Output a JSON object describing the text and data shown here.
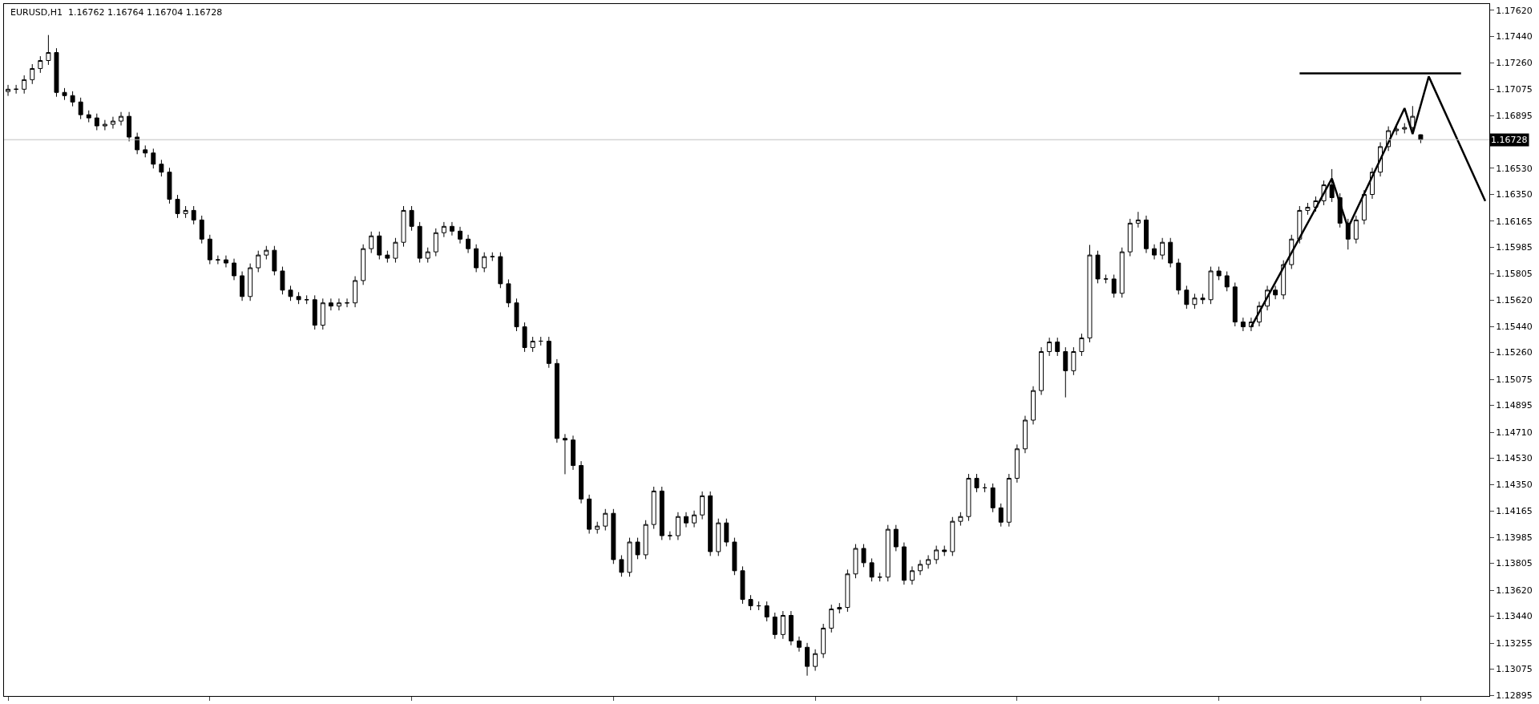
{
  "chart_data": {
    "type": "candlestick",
    "title": "EURUSD,H1  1.16762 1.16764 1.16704 1.16728",
    "categories": [
      null,
      null,
      null,
      null,
      null,
      null,
      null,
      null,
      null,
      null,
      null,
      null,
      null,
      null,
      null,
      null,
      null,
      null,
      null,
      null,
      null,
      null,
      null,
      null,
      null,
      null,
      null,
      null,
      null,
      null,
      null,
      null,
      null,
      null,
      null,
      null,
      null,
      null,
      null,
      null,
      null,
      null,
      null,
      null,
      null,
      null,
      null,
      null,
      null,
      null,
      null,
      null,
      null,
      null,
      null,
      null,
      null,
      null,
      null,
      null,
      null,
      null,
      null,
      null,
      null,
      null,
      null,
      null,
      null,
      null,
      null,
      null,
      null,
      null,
      null,
      null,
      null,
      null,
      null,
      null,
      null,
      null,
      null,
      null,
      null,
      null,
      null,
      null,
      null,
      null,
      null,
      null,
      null,
      null,
      null,
      null,
      null,
      null,
      null,
      null,
      null,
      null,
      null,
      null,
      null,
      null,
      null,
      null,
      null,
      null,
      null,
      null,
      null,
      null,
      null,
      null,
      null,
      null,
      null,
      null,
      null,
      null,
      null,
      null,
      null,
      null,
      null,
      null,
      null,
      null,
      null,
      null,
      null,
      null,
      null,
      null,
      null,
      null,
      null,
      null,
      null,
      null,
      null,
      null,
      null,
      null,
      null,
      null,
      null,
      null,
      null,
      null,
      null,
      null,
      null,
      null,
      null,
      null,
      null,
      null,
      null,
      null,
      null,
      null,
      null,
      null,
      null,
      null,
      null,
      null,
      null,
      null,
      null,
      null,
      null,
      null,
      null,
      null,
      null,
      null,
      null,
      null,
      null,
      null
    ],
    "ohlc": [
      [
        1.1706,
        1.17106,
        1.1703,
        1.17076
      ],
      [
        1.17076,
        1.17106,
        1.17046,
        1.17076
      ],
      [
        1.17076,
        1.17172,
        1.17046,
        1.17142
      ],
      [
        1.17142,
        1.17249,
        1.17112,
        1.17219
      ],
      [
        1.17219,
        1.17304,
        1.17189,
        1.17274
      ],
      [
        1.17274,
        1.1745,
        1.17244,
        1.17329
      ],
      [
        1.17329,
        1.17359,
        1.17024,
        1.17054
      ],
      [
        1.17054,
        1.17084,
        1.17002,
        1.17032
      ],
      [
        1.17032,
        1.17062,
        1.16958,
        1.16988
      ],
      [
        1.16988,
        1.17018,
        1.1687,
        1.169
      ],
      [
        1.169,
        1.1693,
        1.16848,
        1.16878
      ],
      [
        1.16878,
        1.16908,
        1.16793,
        1.16823
      ],
      [
        1.16823,
        1.16864,
        1.16793,
        1.16834
      ],
      [
        1.16834,
        1.16886,
        1.16804,
        1.16856
      ],
      [
        1.16856,
        1.16919,
        1.16826,
        1.16889
      ],
      [
        1.16889,
        1.16919,
        1.16716,
        1.16746
      ],
      [
        1.16746,
        1.16776,
        1.16628,
        1.16658
      ],
      [
        1.16658,
        1.16688,
        1.16606,
        1.16636
      ],
      [
        1.16636,
        1.16666,
        1.16529,
        1.16559
      ],
      [
        1.16559,
        1.16589,
        1.16474,
        1.16504
      ],
      [
        1.16504,
        1.16534,
        1.16287,
        1.16317
      ],
      [
        1.16317,
        1.16347,
        1.16188,
        1.16218
      ],
      [
        1.16218,
        1.1627,
        1.16188,
        1.1624
      ],
      [
        1.1624,
        1.1627,
        1.16144,
        1.16174
      ],
      [
        1.16174,
        1.16204,
        1.16012,
        1.16042
      ],
      [
        1.16042,
        1.16072,
        1.15869,
        1.15899
      ],
      [
        1.15899,
        1.15929,
        1.15869,
        1.15899
      ],
      [
        1.15899,
        1.15929,
        1.15847,
        1.15877
      ],
      [
        1.15877,
        1.15907,
        1.15759,
        1.15789
      ],
      [
        1.15789,
        1.15819,
        1.15616,
        1.15646
      ],
      [
        1.15646,
        1.15874,
        1.15616,
        1.15844
      ],
      [
        1.15844,
        1.15962,
        1.15814,
        1.15932
      ],
      [
        1.15932,
        1.15995,
        1.15902,
        1.15965
      ],
      [
        1.15965,
        1.15995,
        1.15792,
        1.15822
      ],
      [
        1.15822,
        1.15852,
        1.1566,
        1.1569
      ],
      [
        1.1569,
        1.1572,
        1.15616,
        1.15646
      ],
      [
        1.15646,
        1.15676,
        1.15594,
        1.15624
      ],
      [
        1.15624,
        1.15654,
        1.15594,
        1.15624
      ],
      [
        1.15624,
        1.15654,
        1.15418,
        1.15448
      ],
      [
        1.15448,
        1.15632,
        1.15418,
        1.15602
      ],
      [
        1.15602,
        1.15632,
        1.1555,
        1.1558
      ],
      [
        1.1558,
        1.15632,
        1.1555,
        1.15602
      ],
      [
        1.15602,
        1.15632,
        1.15572,
        1.15602
      ],
      [
        1.15602,
        1.15786,
        1.15572,
        1.15756
      ],
      [
        1.15756,
        1.16006,
        1.15726,
        1.15976
      ],
      [
        1.15976,
        1.16094,
        1.15946,
        1.16064
      ],
      [
        1.16064,
        1.16094,
        1.15902,
        1.15932
      ],
      [
        1.15932,
        1.15962,
        1.1588,
        1.1591
      ],
      [
        1.1591,
        1.1605,
        1.1588,
        1.1602
      ],
      [
        1.1602,
        1.1627,
        1.1599,
        1.1624
      ],
      [
        1.1624,
        1.1627,
        1.161,
        1.1613
      ],
      [
        1.1613,
        1.1616,
        1.1588,
        1.1591
      ],
      [
        1.1591,
        1.15984,
        1.1588,
        1.15954
      ],
      [
        1.15954,
        1.16116,
        1.15924,
        1.16086
      ],
      [
        1.16086,
        1.1616,
        1.16056,
        1.1613
      ],
      [
        1.1613,
        1.1616,
        1.16067,
        1.16097
      ],
      [
        1.16097,
        1.16127,
        1.16012,
        1.16042
      ],
      [
        1.16042,
        1.16072,
        1.15946,
        1.15976
      ],
      [
        1.15976,
        1.16006,
        1.15814,
        1.15844
      ],
      [
        1.15844,
        1.15951,
        1.15814,
        1.15921
      ],
      [
        1.15921,
        1.15951,
        1.15891,
        1.15921
      ],
      [
        1.15921,
        1.15951,
        1.15704,
        1.15734
      ],
      [
        1.15734,
        1.15764,
        1.15572,
        1.15602
      ],
      [
        1.15602,
        1.15632,
        1.15407,
        1.15437
      ],
      [
        1.15437,
        1.15467,
        1.15264,
        1.15294
      ],
      [
        1.15294,
        1.15368,
        1.15264,
        1.15338
      ],
      [
        1.15338,
        1.15368,
        1.15308,
        1.15338
      ],
      [
        1.15338,
        1.15368,
        1.15154,
        1.15184
      ],
      [
        1.15184,
        1.15214,
        1.14637,
        1.14667
      ],
      [
        1.14667,
        1.14697,
        1.1442,
        1.14656
      ],
      [
        1.14656,
        1.14686,
        1.1445,
        1.1448
      ],
      [
        1.1448,
        1.1451,
        1.14219,
        1.14249
      ],
      [
        1.14249,
        1.14279,
        1.1401,
        1.1404
      ],
      [
        1.1404,
        1.14092,
        1.1401,
        1.14062
      ],
      [
        1.14062,
        1.1418,
        1.14032,
        1.1415
      ],
      [
        1.1415,
        1.1418,
        1.13801,
        1.13831
      ],
      [
        1.13831,
        1.13861,
        1.13713,
        1.13743
      ],
      [
        1.13743,
        1.13982,
        1.13713,
        1.13952
      ],
      [
        1.13952,
        1.13982,
        1.13834,
        1.13864
      ],
      [
        1.13864,
        1.14103,
        1.13834,
        1.14073
      ],
      [
        1.14073,
        1.14334,
        1.14043,
        1.14304
      ],
      [
        1.14304,
        1.14334,
        1.13966,
        1.13996
      ],
      [
        1.13996,
        1.14026,
        1.13966,
        1.13996
      ],
      [
        1.13996,
        1.14158,
        1.13966,
        1.14128
      ],
      [
        1.14128,
        1.14158,
        1.14054,
        1.14084
      ],
      [
        1.14084,
        1.14169,
        1.14054,
        1.14139
      ],
      [
        1.14139,
        1.14301,
        1.14109,
        1.14271
      ],
      [
        1.14271,
        1.14301,
        1.13856,
        1.13886
      ],
      [
        1.13886,
        1.14114,
        1.13856,
        1.14084
      ],
      [
        1.14084,
        1.14114,
        1.13922,
        1.13952
      ],
      [
        1.13952,
        1.13982,
        1.13724,
        1.13754
      ],
      [
        1.13754,
        1.13784,
        1.13526,
        1.13556
      ],
      [
        1.13556,
        1.13586,
        1.13482,
        1.13512
      ],
      [
        1.13512,
        1.13542,
        1.13482,
        1.13512
      ],
      [
        1.13512,
        1.13542,
        1.13405,
        1.13435
      ],
      [
        1.13435,
        1.13465,
        1.13284,
        1.13314
      ],
      [
        1.13314,
        1.13476,
        1.13284,
        1.13446
      ],
      [
        1.13446,
        1.13476,
        1.1324,
        1.1327
      ],
      [
        1.1327,
        1.133,
        1.13196,
        1.13226
      ],
      [
        1.13226,
        1.13256,
        1.1303,
        1.13094
      ],
      [
        1.13094,
        1.13212,
        1.13064,
        1.13182
      ],
      [
        1.13182,
        1.13388,
        1.13152,
        1.13358
      ],
      [
        1.13358,
        1.1352,
        1.13328,
        1.1349
      ],
      [
        1.1349,
        1.13531,
        1.1346,
        1.13501
      ],
      [
        1.13501,
        1.13762,
        1.13471,
        1.13732
      ],
      [
        1.13732,
        1.13938,
        1.13702,
        1.13908
      ],
      [
        1.13908,
        1.13938,
        1.13779,
        1.13809
      ],
      [
        1.13809,
        1.13839,
        1.1368,
        1.1371
      ],
      [
        1.1371,
        1.1374,
        1.1368,
        1.1371
      ],
      [
        1.1371,
        1.1407,
        1.1368,
        1.1404
      ],
      [
        1.1404,
        1.1407,
        1.13889,
        1.13919
      ],
      [
        1.13919,
        1.13949,
        1.13658,
        1.13688
      ],
      [
        1.13688,
        1.13784,
        1.13658,
        1.13754
      ],
      [
        1.13754,
        1.13828,
        1.13724,
        1.13798
      ],
      [
        1.13798,
        1.13861,
        1.13768,
        1.13831
      ],
      [
        1.13831,
        1.13927,
        1.13801,
        1.13897
      ],
      [
        1.13897,
        1.13927,
        1.13856,
        1.13886
      ],
      [
        1.13886,
        1.14125,
        1.13856,
        1.14095
      ],
      [
        1.14095,
        1.14158,
        1.14065,
        1.14128
      ],
      [
        1.14128,
        1.14422,
        1.14098,
        1.14392
      ],
      [
        1.14392,
        1.14422,
        1.14296,
        1.14326
      ],
      [
        1.14326,
        1.14356,
        1.14296,
        1.14326
      ],
      [
        1.14326,
        1.14356,
        1.14158,
        1.14188
      ],
      [
        1.14188,
        1.14218,
        1.14059,
        1.14089
      ],
      [
        1.14089,
        1.14422,
        1.14059,
        1.14392
      ],
      [
        1.14392,
        1.14625,
        1.14362,
        1.14595
      ],
      [
        1.14595,
        1.14823,
        1.14565,
        1.14793
      ],
      [
        1.14793,
        1.15027,
        1.14763,
        1.14997
      ],
      [
        1.14997,
        1.15296,
        1.14967,
        1.15266
      ],
      [
        1.15266,
        1.15362,
        1.15236,
        1.15332
      ],
      [
        1.15332,
        1.15362,
        1.15236,
        1.15266
      ],
      [
        1.15266,
        1.15296,
        1.1495,
        1.15134
      ],
      [
        1.15134,
        1.15296,
        1.15104,
        1.15266
      ],
      [
        1.15266,
        1.1539,
        1.15236,
        1.1536
      ],
      [
        1.1536,
        1.16002,
        1.1533,
        1.15932
      ],
      [
        1.15932,
        1.15962,
        1.15737,
        1.15767
      ],
      [
        1.15767,
        1.15797,
        1.15737,
        1.15767
      ],
      [
        1.15767,
        1.15797,
        1.15638,
        1.15668
      ],
      [
        1.15668,
        1.15984,
        1.15638,
        1.15954
      ],
      [
        1.15954,
        1.16182,
        1.15924,
        1.16152
      ],
      [
        1.16152,
        1.1623,
        1.16122,
        1.16174
      ],
      [
        1.16174,
        1.16204,
        1.15946,
        1.15976
      ],
      [
        1.15976,
        1.16006,
        1.15902,
        1.15932
      ],
      [
        1.15932,
        1.1605,
        1.15902,
        1.1602
      ],
      [
        1.1602,
        1.1605,
        1.15847,
        1.15877
      ],
      [
        1.15877,
        1.15907,
        1.1566,
        1.1569
      ],
      [
        1.1569,
        1.1572,
        1.15561,
        1.15591
      ],
      [
        1.15591,
        1.15665,
        1.15561,
        1.15635
      ],
      [
        1.15635,
        1.15665,
        1.15594,
        1.15624
      ],
      [
        1.15624,
        1.15852,
        1.15594,
        1.15822
      ],
      [
        1.15822,
        1.15852,
        1.15759,
        1.15789
      ],
      [
        1.15789,
        1.15819,
        1.15682,
        1.15712
      ],
      [
        1.15712,
        1.15742,
        1.1544,
        1.1547
      ],
      [
        1.1547,
        1.155,
        1.15407,
        1.15437
      ],
      [
        1.15437,
        1.155,
        1.15407,
        1.1547
      ],
      [
        1.1547,
        1.1561,
        1.1544,
        1.1558
      ],
      [
        1.1558,
        1.1572,
        1.1555,
        1.1569
      ],
      [
        1.1569,
        1.1572,
        1.15627,
        1.15657
      ],
      [
        1.15657,
        1.15896,
        1.15627,
        1.15866
      ],
      [
        1.15866,
        1.16072,
        1.15836,
        1.16042
      ],
      [
        1.16042,
        1.1627,
        1.16012,
        1.1624
      ],
      [
        1.1624,
        1.16292,
        1.1621,
        1.16262
      ],
      [
        1.16262,
        1.16336,
        1.16232,
        1.16306
      ],
      [
        1.16306,
        1.16446,
        1.16276,
        1.16416
      ],
      [
        1.16416,
        1.16525,
        1.16298,
        1.16328
      ],
      [
        1.16328,
        1.16358,
        1.16122,
        1.16152
      ],
      [
        1.16152,
        1.16182,
        1.1597,
        1.16042
      ],
      [
        1.16042,
        1.16204,
        1.16012,
        1.16174
      ],
      [
        1.16174,
        1.1638,
        1.16144,
        1.1635
      ],
      [
        1.1635,
        1.16534,
        1.1632,
        1.16504
      ],
      [
        1.16504,
        1.1671,
        1.16474,
        1.1668
      ],
      [
        1.1668,
        1.1682,
        1.1665,
        1.1679
      ],
      [
        1.1679,
        1.16831,
        1.1676,
        1.16801
      ],
      [
        1.16801,
        1.16842,
        1.16771,
        1.16812
      ],
      [
        1.16812,
        1.1696,
        1.16782,
        1.16889
      ],
      [
        1.16762,
        1.16764,
        1.16704,
        1.16728
      ],
      null,
      null,
      null,
      null,
      null,
      null,
      null,
      null
    ],
    "series": [
      {
        "type": "line",
        "color": "#000000",
        "values": [
          null,
          null,
          null,
          null,
          null,
          null,
          null,
          null,
          null,
          null,
          null,
          null,
          null,
          null,
          null,
          null,
          null,
          null,
          null,
          null,
          null,
          null,
          null,
          null,
          null,
          null,
          null,
          null,
          null,
          null,
          null,
          null,
          null,
          null,
          null,
          null,
          null,
          null,
          null,
          null,
          null,
          null,
          null,
          null,
          null,
          null,
          null,
          null,
          null,
          null,
          null,
          null,
          null,
          null,
          null,
          null,
          null,
          null,
          null,
          null,
          null,
          null,
          null,
          null,
          null,
          null,
          null,
          null,
          null,
          null,
          null,
          null,
          null,
          null,
          null,
          null,
          null,
          null,
          null,
          null,
          null,
          null,
          null,
          null,
          null,
          null,
          null,
          null,
          null,
          null,
          null,
          null,
          null,
          null,
          null,
          null,
          null,
          null,
          null,
          null,
          null,
          null,
          null,
          null,
          null,
          null,
          null,
          null,
          null,
          null,
          null,
          null,
          null,
          null,
          null,
          null,
          null,
          null,
          null,
          null,
          null,
          null,
          null,
          null,
          null,
          null,
          null,
          null,
          null,
          null,
          null,
          null,
          null,
          null,
          null,
          null,
          null,
          null,
          null,
          null,
          null,
          null,
          null,
          null,
          null,
          null,
          null,
          null,
          null,
          null,
          null,
          null,
          null,
          null,
          1.15437,
          null,
          null,
          null,
          null,
          null,
          null,
          null,
          null,
          null,
          1.1646,
          null,
          1.1612,
          null,
          null,
          null,
          null,
          null,
          null,
          1.16945,
          1.16767,
          null,
          1.17164,
          null,
          null,
          null,
          null,
          null,
          null,
          1.16305
        ]
      },
      {
        "type": "line",
        "color": "#000000",
        "values": [
          null,
          null,
          null,
          null,
          null,
          null,
          null,
          null,
          null,
          null,
          null,
          null,
          null,
          null,
          null,
          null,
          null,
          null,
          null,
          null,
          null,
          null,
          null,
          null,
          null,
          null,
          null,
          null,
          null,
          null,
          null,
          null,
          null,
          null,
          null,
          null,
          null,
          null,
          null,
          null,
          null,
          null,
          null,
          null,
          null,
          null,
          null,
          null,
          null,
          null,
          null,
          null,
          null,
          null,
          null,
          null,
          null,
          null,
          null,
          null,
          null,
          null,
          null,
          null,
          null,
          null,
          null,
          null,
          null,
          null,
          null,
          null,
          null,
          null,
          null,
          null,
          null,
          null,
          null,
          null,
          null,
          null,
          null,
          null,
          null,
          null,
          null,
          null,
          null,
          null,
          null,
          null,
          null,
          null,
          null,
          null,
          null,
          null,
          null,
          null,
          null,
          null,
          null,
          null,
          null,
          null,
          null,
          null,
          null,
          null,
          null,
          null,
          null,
          null,
          null,
          null,
          null,
          null,
          null,
          null,
          null,
          null,
          null,
          null,
          null,
          null,
          null,
          null,
          null,
          null,
          null,
          null,
          null,
          null,
          null,
          null,
          null,
          null,
          null,
          null,
          null,
          null,
          null,
          null,
          null,
          null,
          null,
          null,
          null,
          null,
          null,
          null,
          null,
          null,
          null,
          null,
          null,
          null,
          null,
          null,
          1.17186,
          null,
          null,
          null,
          null,
          null,
          null,
          null,
          null,
          null,
          null,
          null,
          null,
          null,
          null,
          null,
          null,
          null,
          null,
          null,
          1.17186,
          null,
          null,
          null
        ]
      }
    ],
    "ref_lines": [
      {
        "axis": "y",
        "value": 1.16728,
        "label": "1.16728",
        "color": "#c0c0c0"
      }
    ],
    "ylim": [
      1.1289,
      1.17664
    ],
    "yticks": [
      {
        "value": 1.1762,
        "label": "1.17620"
      },
      {
        "value": 1.1744,
        "label": "1.17440"
      },
      {
        "value": 1.1726,
        "label": "1.17260"
      },
      {
        "value": 1.17075,
        "label": "1.17075"
      },
      {
        "value": 1.16895,
        "label": "1.16895"
      },
      {
        "value": 1.1653,
        "label": "1.16530"
      },
      {
        "value": 1.1635,
        "label": "1.16350"
      },
      {
        "value": 1.16165,
        "label": "1.16165"
      },
      {
        "value": 1.15985,
        "label": "1.15985"
      },
      {
        "value": 1.15805,
        "label": "1.15805"
      },
      {
        "value": 1.1562,
        "label": "1.15620"
      },
      {
        "value": 1.1544,
        "label": "1.15440"
      },
      {
        "value": 1.1526,
        "label": "1.15260"
      },
      {
        "value": 1.15075,
        "label": "1.15075"
      },
      {
        "value": 1.14895,
        "label": "1.14895"
      },
      {
        "value": 1.1471,
        "label": "1.14710"
      },
      {
        "value": 1.1453,
        "label": "1.14530"
      },
      {
        "value": 1.1435,
        "label": "1.14350"
      },
      {
        "value": 1.14165,
        "label": "1.14165"
      },
      {
        "value": 1.13985,
        "label": "1.13985"
      },
      {
        "value": 1.13805,
        "label": "1.13805"
      },
      {
        "value": 1.1362,
        "label": "1.13620"
      },
      {
        "value": 1.1344,
        "label": "1.13440"
      },
      {
        "value": 1.13255,
        "label": "1.13255"
      },
      {
        "value": 1.13075,
        "label": "1.13075"
      },
      {
        "value": 1.12895,
        "label": "1.12895"
      }
    ],
    "tick_labels": "y"
  }
}
